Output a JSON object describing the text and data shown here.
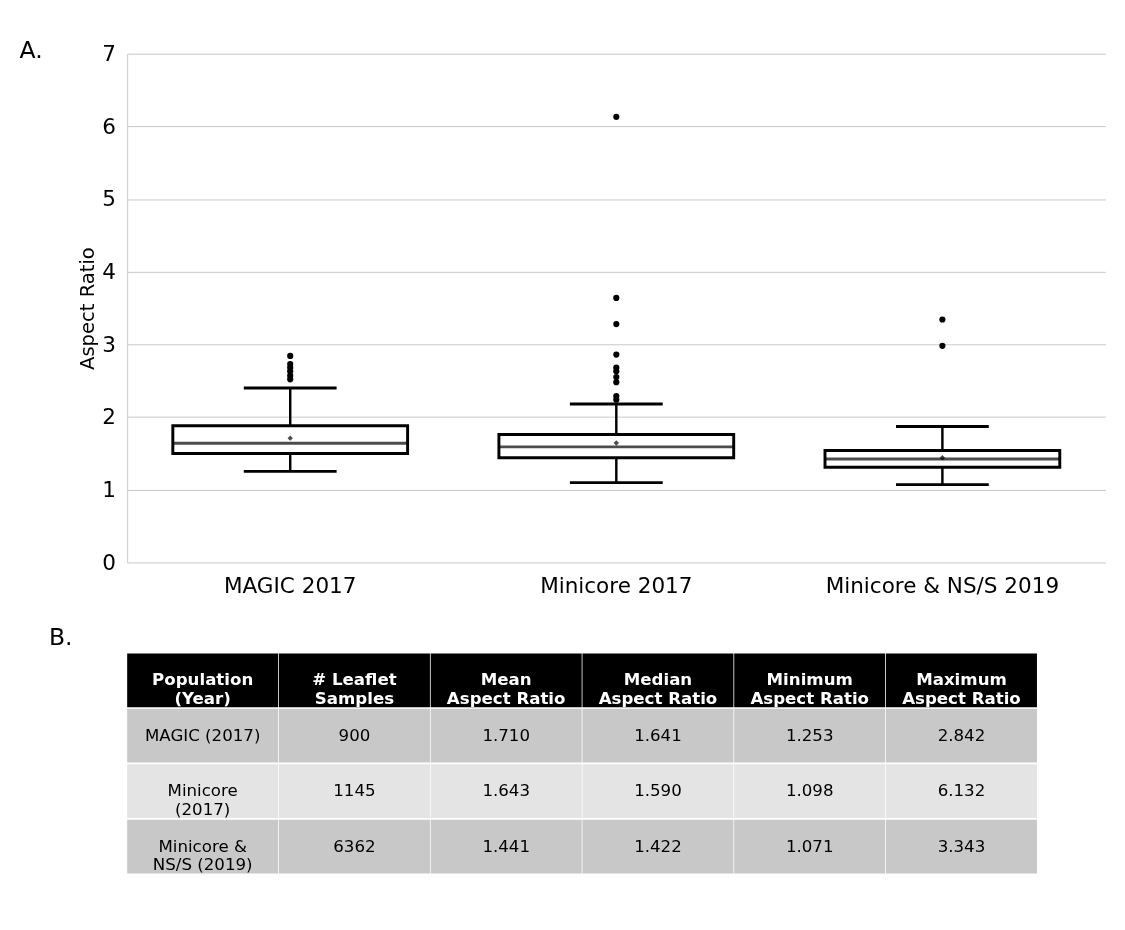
{
  "chart_data": [
    {
      "type": "box",
      "title": "A.",
      "ylabel": "Aspect Ratio",
      "categories": [
        "MAGIC 2017",
        "Minicore 2017",
        "Minicore & NS/S 2019"
      ],
      "ylim": [
        0,
        7
      ],
      "yticks": [
        0,
        1,
        2,
        3,
        4,
        5,
        6,
        7
      ],
      "grid": "y",
      "color": "#000000",
      "boxes": [
        {
          "low": 1.253,
          "q1": 1.5,
          "median": 1.641,
          "q3": 1.88,
          "high": 2.4,
          "mean": 1.71,
          "outliers": [
            2.52,
            2.57,
            2.63,
            2.68,
            2.73,
            2.842
          ]
        },
        {
          "low": 1.098,
          "q1": 1.44,
          "median": 1.59,
          "q3": 1.76,
          "high": 2.18,
          "mean": 1.643,
          "outliers": [
            2.24,
            2.29,
            2.48,
            2.55,
            2.63,
            2.68,
            2.86,
            3.28,
            3.64,
            6.132
          ]
        },
        {
          "low": 1.071,
          "q1": 1.31,
          "median": 1.422,
          "q3": 1.54,
          "high": 1.87,
          "mean": 1.441,
          "outliers": [
            2.98,
            3.343
          ]
        }
      ]
    },
    {
      "type": "other",
      "title": "B.",
      "categories": [
        "Population\n(Year)",
        "# Leaflet\nSamples",
        "Mean\nAspect Ratio",
        "Median\nAspect Ratio",
        "Minimum\nAspect Ratio",
        "Maximum\nAspect Ratio"
      ],
      "cell_labels": [
        [
          "MAGIC (2017)",
          "900",
          "1.710",
          "1.641",
          "1.253",
          "2.842"
        ],
        [
          "Minicore\n(2017)",
          "1145",
          "1.643",
          "1.590",
          "1.098",
          "6.132"
        ],
        [
          "Minicore &\nNS/S (2019)",
          "6362",
          "1.441",
          "1.422",
          "1.071",
          "3.343"
        ]
      ]
    }
  ]
}
